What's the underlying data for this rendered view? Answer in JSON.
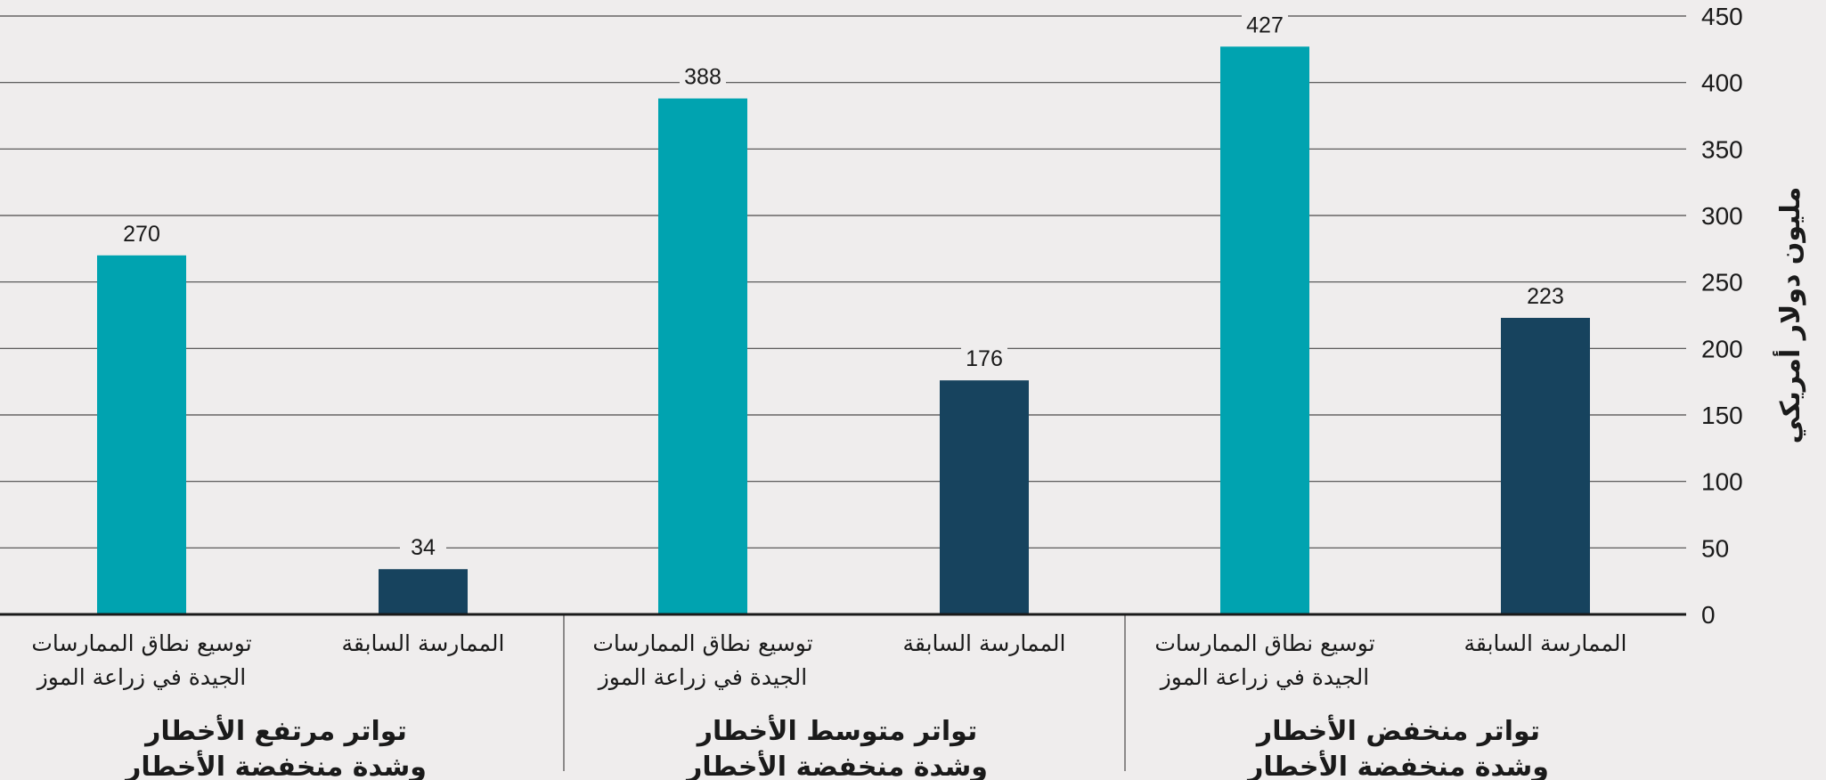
{
  "chart_data": {
    "type": "bar",
    "ylabel": "مليون دولار أمريكي",
    "ylim": [
      0,
      450
    ],
    "yticks": [
      0,
      50,
      100,
      150,
      200,
      250,
      300,
      350,
      400,
      450
    ],
    "grid": true,
    "groups": [
      {
        "name_lines": [
          "تواتر منخفض الأخطار",
          "وشدة منخفضة الأخطار"
        ],
        "bars": [
          {
            "label_lines": [
              "الممارسة السابقة"
            ],
            "value": 223,
            "color": "#17435e"
          },
          {
            "label_lines": [
              "توسيع نطاق الممارسات",
              "الجيدة في زراعة الموز"
            ],
            "value": 427,
            "color": "#00a3b0"
          }
        ]
      },
      {
        "name_lines": [
          "تواتر متوسط الأخطار",
          "وشدة منخفضة الأخطار"
        ],
        "bars": [
          {
            "label_lines": [
              "الممارسة السابقة"
            ],
            "value": 176,
            "color": "#17435e"
          },
          {
            "label_lines": [
              "توسيع نطاق الممارسات",
              "الجيدة في زراعة الموز"
            ],
            "value": 388,
            "color": "#00a3b0"
          }
        ]
      },
      {
        "name_lines": [
          "تواتر مرتفع الأخطار",
          "وشدة منخفضة الأخطار"
        ],
        "bars": [
          {
            "label_lines": [
              "الممارسة السابقة"
            ],
            "value": 34,
            "color": "#17435e"
          },
          {
            "label_lines": [
              "توسيع نطاق الممارسات",
              "الجيدة في زراعة الموز"
            ],
            "value": 270,
            "color": "#00a3b0"
          }
        ]
      }
    ]
  }
}
